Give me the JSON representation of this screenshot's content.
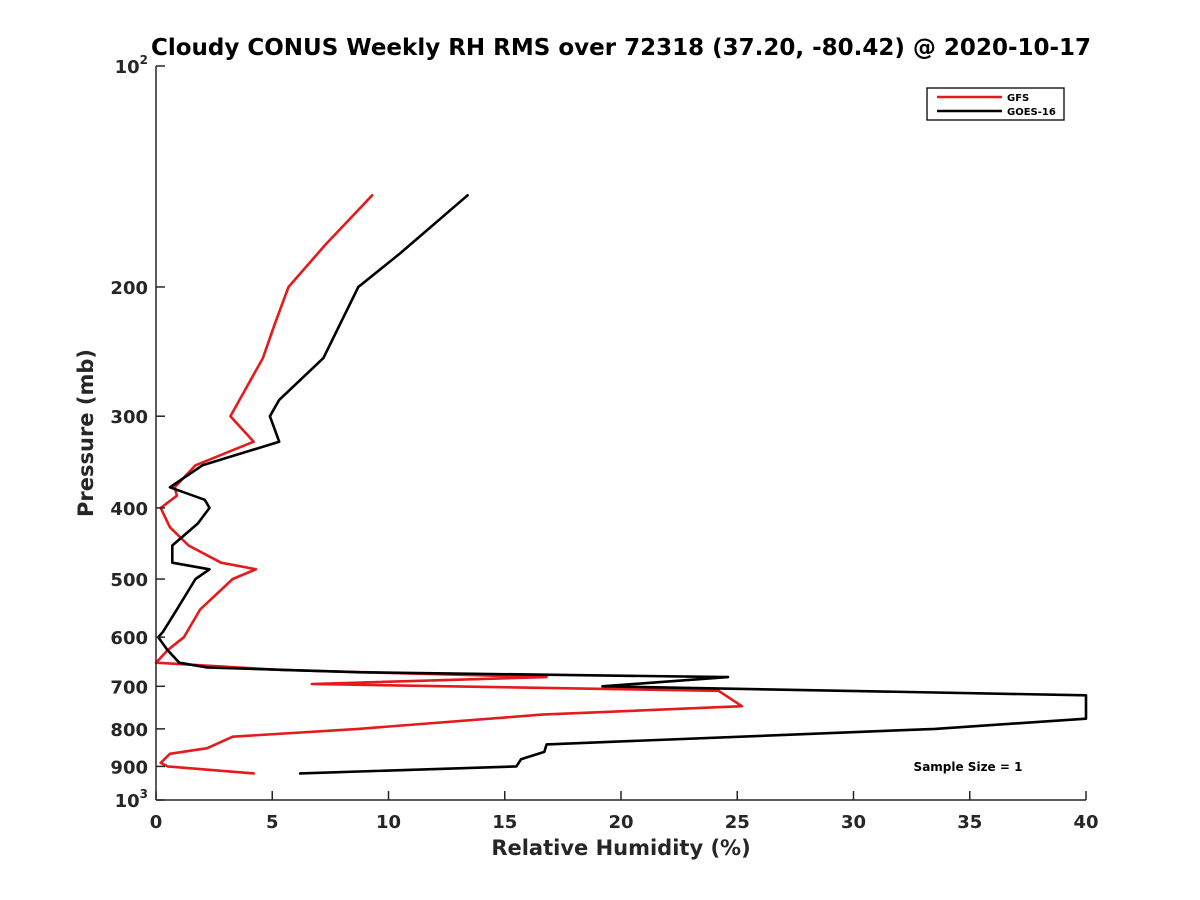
{
  "chart_data": {
    "type": "line",
    "title": "Cloudy CONUS Weekly RH RMS over 72318 (37.20, -80.42) @ 2020-10-17",
    "xlabel": "Relative Humidity (%)",
    "ylabel": "Pressure (mb)",
    "xlim": [
      0,
      40
    ],
    "ylim": [
      100,
      1000
    ],
    "y_scale": "log",
    "y_reversed": true,
    "x_ticks": [
      0,
      5,
      10,
      15,
      20,
      25,
      30,
      35,
      40
    ],
    "x_tick_labels": [
      "0",
      "5",
      "10",
      "15",
      "20",
      "25",
      "30",
      "35",
      "40"
    ],
    "y_ticks": [
      100,
      200,
      300,
      400,
      500,
      600,
      700,
      800,
      900,
      1000
    ],
    "y_tick_labels": [
      {
        "base": "10",
        "sup": "2"
      },
      {
        "base": "200",
        "sup": ""
      },
      {
        "base": "300",
        "sup": ""
      },
      {
        "base": "400",
        "sup": ""
      },
      {
        "base": "500",
        "sup": ""
      },
      {
        "base": "600",
        "sup": ""
      },
      {
        "base": "700",
        "sup": ""
      },
      {
        "base": "800",
        "sup": ""
      },
      {
        "base": "900",
        "sup": ""
      },
      {
        "base": "10",
        "sup": "3"
      }
    ],
    "legend_position": "top-right",
    "annotation": "Sample Size = 1",
    "series": [
      {
        "name": "GFS",
        "color": "#e41a1c",
        "points": [
          [
            9.3,
            150
          ],
          [
            7.3,
            175
          ],
          [
            5.7,
            200
          ],
          [
            5.1,
            225
          ],
          [
            4.6,
            250
          ],
          [
            3.2,
            300
          ],
          [
            4.2,
            325
          ],
          [
            1.7,
            350
          ],
          [
            0.8,
            375
          ],
          [
            0.9,
            385
          ],
          [
            0.2,
            400
          ],
          [
            0.6,
            425
          ],
          [
            1.4,
            450
          ],
          [
            2.8,
            475
          ],
          [
            4.3,
            485
          ],
          [
            3.3,
            500
          ],
          [
            1.9,
            550
          ],
          [
            1.2,
            600
          ],
          [
            0.5,
            625
          ],
          [
            0.0,
            650
          ],
          [
            5.4,
            665
          ],
          [
            16.8,
            680
          ],
          [
            6.7,
            695
          ],
          [
            24.2,
            710
          ],
          [
            25.2,
            745
          ],
          [
            16.6,
            765
          ],
          [
            8.7,
            800
          ],
          [
            3.3,
            820
          ],
          [
            2.2,
            850
          ],
          [
            0.6,
            865
          ],
          [
            0.2,
            890
          ],
          [
            0.5,
            900
          ],
          [
            4.2,
            920
          ]
        ]
      },
      {
        "name": "GOES-16",
        "color": "#000000",
        "points": [
          [
            13.4,
            150
          ],
          [
            10.5,
            180
          ],
          [
            8.7,
            200
          ],
          [
            7.2,
            250
          ],
          [
            5.3,
            285
          ],
          [
            4.9,
            300
          ],
          [
            5.3,
            325
          ],
          [
            2.0,
            350
          ],
          [
            0.6,
            375
          ],
          [
            2.1,
            390
          ],
          [
            2.3,
            400
          ],
          [
            1.8,
            420
          ],
          [
            0.7,
            450
          ],
          [
            0.7,
            475
          ],
          [
            2.3,
            485
          ],
          [
            1.7,
            500
          ],
          [
            0.9,
            550
          ],
          [
            0.3,
            590
          ],
          [
            0.1,
            600
          ],
          [
            0.5,
            625
          ],
          [
            1.0,
            650
          ],
          [
            2.2,
            660
          ],
          [
            8.8,
            670
          ],
          [
            24.6,
            680
          ],
          [
            19.2,
            700
          ],
          [
            40.0,
            720
          ],
          [
            40.0,
            775
          ],
          [
            33.5,
            800
          ],
          [
            16.8,
            840
          ],
          [
            16.7,
            860
          ],
          [
            15.7,
            880
          ],
          [
            15.5,
            900
          ],
          [
            6.2,
            920
          ]
        ]
      }
    ]
  }
}
